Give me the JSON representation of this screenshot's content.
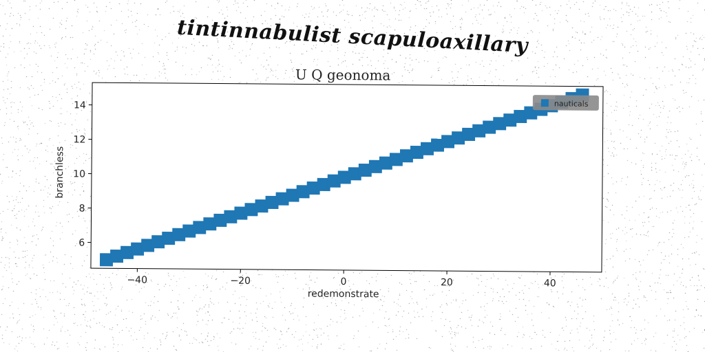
{
  "figure": {
    "title": "tintinnabulist scapuloaxillary"
  },
  "chart_data": {
    "type": "scatter",
    "title": "U Q geonoma",
    "xlabel": "redemonstrate",
    "ylabel": "branchless",
    "xlim": [
      -49,
      50
    ],
    "ylim": [
      4.5,
      15.3
    ],
    "xticks": [
      -40,
      -20,
      0,
      20,
      40
    ],
    "yticks": [
      6,
      8,
      10,
      12,
      14
    ],
    "grid": false,
    "legend": "top-right",
    "marker": "square",
    "series": [
      {
        "name": "nauticals",
        "color": "#1f77b4",
        "x_range": [
          -46,
          46
        ],
        "y_range": [
          5.0,
          14.8
        ],
        "count": 47
      }
    ]
  }
}
